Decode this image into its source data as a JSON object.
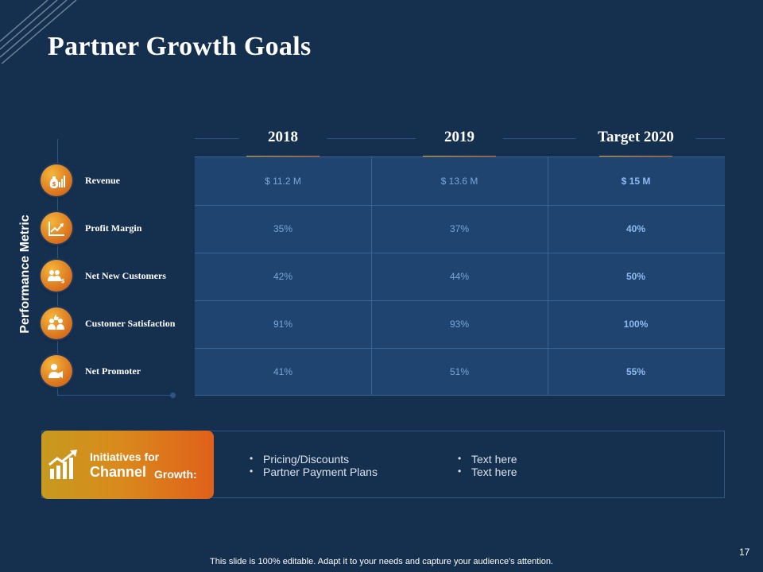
{
  "slide": {
    "title": "Partner Growth Goals",
    "axis_label": "Performance Metric",
    "page_number": "17",
    "footer": "This slide is 100% editable. Adapt it to your needs and capture your audience's attention."
  },
  "columns": [
    {
      "label": "2018"
    },
    {
      "label": "2019"
    },
    {
      "label": "Target 2020"
    }
  ],
  "metrics": [
    {
      "label": "Revenue",
      "icon": "money-bag-chart-icon",
      "values": [
        "$ 11.2 M",
        "$ 13.6 M",
        "$ 15 M"
      ]
    },
    {
      "label": "Profit Margin",
      "icon": "growth-chart-icon",
      "values": [
        "35%",
        "37%",
        "40%"
      ]
    },
    {
      "label": "Net New Customers",
      "icon": "customers-icon",
      "values": [
        "42%",
        "44%",
        "50%"
      ]
    },
    {
      "label": "Customer Satisfaction",
      "icon": "thumbs-up-users-icon",
      "values": [
        "91%",
        "93%",
        "100%"
      ]
    },
    {
      "label": "Net Promoter",
      "icon": "promoter-megaphone-icon",
      "values": [
        "41%",
        "51%",
        "55%"
      ]
    }
  ],
  "initiatives": {
    "title_line1": "Initiatives for",
    "title_line2": "Channel",
    "title_line3": "Growth:",
    "icon": "growth-bar-chart-icon",
    "bullets_left": [
      "Pricing/Discounts",
      "Partner Payment Plans"
    ],
    "bullets_right": [
      "Text here",
      "Text here"
    ]
  },
  "colors": {
    "background": "#15304f",
    "table_fill": "#1f4470",
    "accent_orange": "#e0601a",
    "accent_gold": "#e0a020",
    "value_text": "#7aa6d6"
  }
}
